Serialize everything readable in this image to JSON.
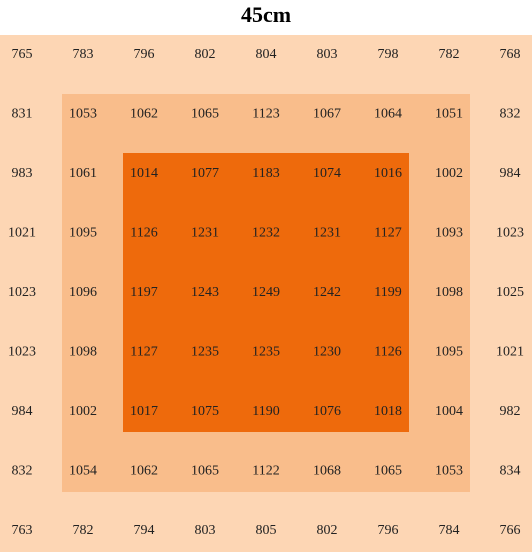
{
  "title": "45cm",
  "grid": {
    "rows": [
      [
        765,
        783,
        796,
        802,
        804,
        803,
        798,
        782,
        768
      ],
      [
        831,
        1053,
        1062,
        1065,
        1123,
        1067,
        1064,
        1051,
        832
      ],
      [
        983,
        1061,
        1014,
        1077,
        1183,
        1074,
        1016,
        1002,
        984
      ],
      [
        1021,
        1095,
        1126,
        1231,
        1232,
        1231,
        1127,
        1093,
        1023
      ],
      [
        1023,
        1096,
        1197,
        1243,
        1249,
        1242,
        1199,
        1098,
        1025
      ],
      [
        1023,
        1098,
        1127,
        1235,
        1235,
        1230,
        1126,
        1095,
        1021
      ],
      [
        984,
        1002,
        1017,
        1075,
        1190,
        1076,
        1018,
        1004,
        982
      ],
      [
        832,
        1054,
        1062,
        1065,
        1122,
        1068,
        1065,
        1053,
        834
      ],
      [
        763,
        782,
        794,
        803,
        805,
        802,
        796,
        784,
        766
      ]
    ]
  }
}
